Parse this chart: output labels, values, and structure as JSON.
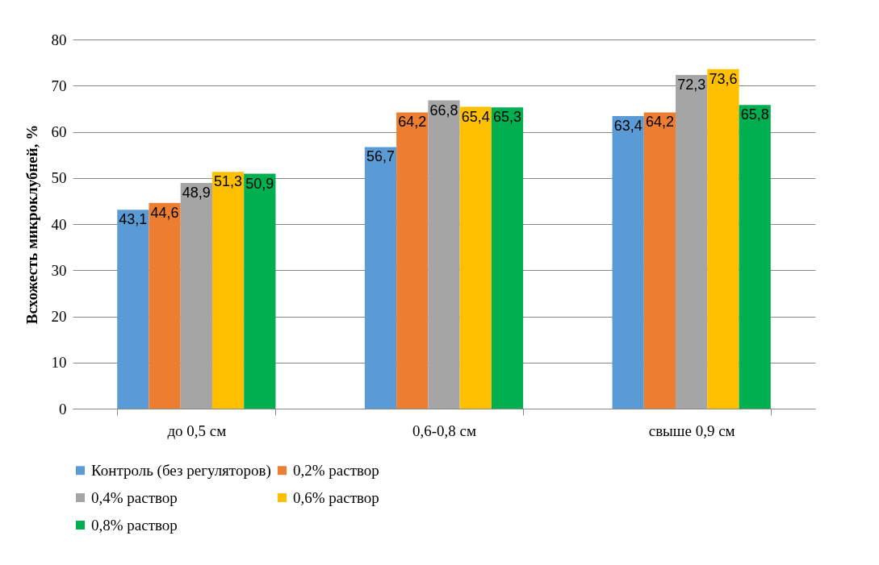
{
  "chart_data": {
    "type": "bar",
    "ylabel": "Всхожесть микроклубней, %",
    "categories": [
      "до 0,5 см",
      "0,6-0,8 см",
      "свыше 0,9 см"
    ],
    "series": [
      {
        "name": "Контроль (без регуляторов)",
        "color": "#5b9bd5",
        "values": [
          43.1,
          56.7,
          63.4
        ],
        "value_labels": [
          "43,1",
          "56,7",
          "63,4"
        ]
      },
      {
        "name": "0,2% раствор",
        "color": "#ed7d31",
        "values": [
          44.6,
          64.2,
          64.2
        ],
        "value_labels": [
          "44,6",
          "64,2",
          "64,2"
        ]
      },
      {
        "name": "0,4% раствор",
        "color": "#a5a5a5",
        "values": [
          48.9,
          66.8,
          72.3
        ],
        "value_labels": [
          "48,9",
          "66,8",
          "72,3"
        ]
      },
      {
        "name": "0,6% раствор",
        "color": "#ffc000",
        "values": [
          51.3,
          65.4,
          73.6
        ],
        "value_labels": [
          "51,3",
          "65,4",
          "73,6"
        ]
      },
      {
        "name": "0,8% раствор",
        "color": "#00b050",
        "values": [
          50.9,
          65.3,
          65.8
        ],
        "value_labels": [
          "50,9",
          "65,3",
          "65,8"
        ]
      }
    ],
    "ylim": [
      0,
      80
    ],
    "yticks": [
      0,
      10,
      20,
      30,
      40,
      50,
      60,
      70,
      80
    ],
    "grid": "y",
    "legend": "bottom"
  }
}
